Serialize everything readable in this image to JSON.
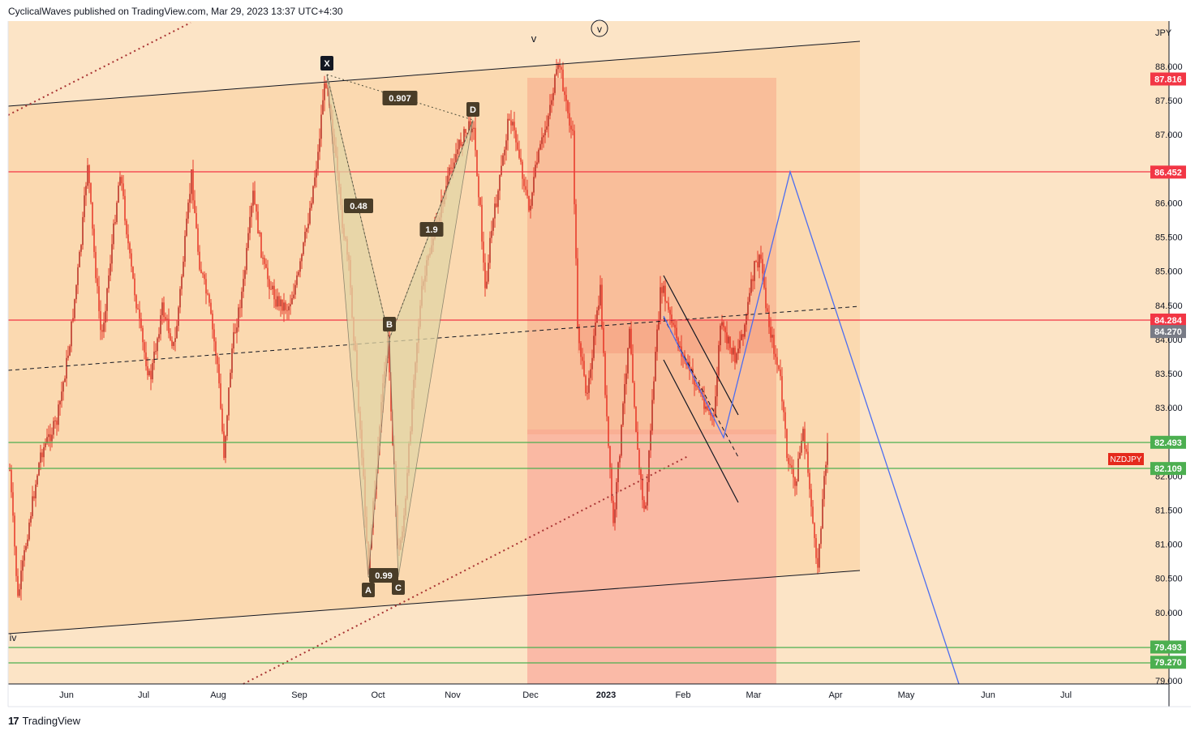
{
  "header": {
    "text": "CyclicalWaves published on TradingView.com, Mar 29, 2023 13:37 UTC+4:30"
  },
  "footer": {
    "brand": "TradingView"
  },
  "colors": {
    "background": "#fce4c6",
    "channel_fill": "#fbd9b0",
    "red_zone": "#f9a79a",
    "candle": "#e52a1c",
    "red_line": "#f23645",
    "green_line": "#4caf50",
    "blue_line": "#2962ff",
    "pattern_fill": "#e8d9ad"
  },
  "chart_data": {
    "type": "candlestick",
    "symbol": "NZDJPY",
    "currency": "JPY",
    "y_ticks": [
      "88.000",
      "87.500",
      "87.000",
      "86.500",
      "86.000",
      "85.500",
      "85.000",
      "84.500",
      "84.000",
      "83.500",
      "83.000",
      "82.500",
      "82.000",
      "81.500",
      "81.000",
      "80.500",
      "80.000",
      "79.500",
      "79.000"
    ],
    "x_ticks": [
      "Jun",
      "Jul",
      "Aug",
      "Sep",
      "Oct",
      "Nov",
      "Dec",
      "2023",
      "Feb",
      "Mar",
      "Apr",
      "May",
      "Jun",
      "Jul"
    ],
    "ylim": [
      79.0,
      88.5
    ],
    "price_labels": [
      {
        "value": "87.816",
        "kind": "red"
      },
      {
        "value": "86.452",
        "kind": "red"
      },
      {
        "value": "84.284",
        "kind": "red"
      },
      {
        "value": "84.270",
        "kind": "gray"
      },
      {
        "value": "82.493",
        "kind": "green"
      },
      {
        "value": "82.109",
        "kind": "green"
      },
      {
        "value": "79.493",
        "kind": "green"
      },
      {
        "value": "79.270",
        "kind": "green"
      }
    ],
    "symbol_tag": "NZDJPY",
    "pattern_points": [
      {
        "label": "X",
        "value": 87.85
      },
      {
        "label": "A",
        "value": 80.55
      },
      {
        "label": "B",
        "value": 84.05
      },
      {
        "label": "C",
        "value": 80.6
      },
      {
        "label": "D",
        "value": 87.2
      }
    ],
    "ratios": [
      "0.907",
      "0.48",
      "1.9",
      "0.99"
    ],
    "wave_labels": [
      "v",
      "v",
      "iv"
    ]
  }
}
